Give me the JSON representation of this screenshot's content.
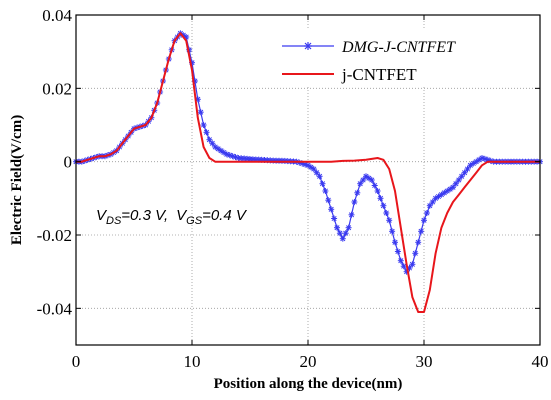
{
  "chart_data": {
    "type": "line",
    "xlabel": "Position along the device(nm)",
    "ylabel": "Electric Field(V/cm)",
    "xlim": [
      0,
      40
    ],
    "ylim": [
      -0.05,
      0.04
    ],
    "xticks": [
      0,
      10,
      20,
      30,
      40
    ],
    "yticks": [
      0.04,
      0.02,
      0,
      -0.02,
      -0.04
    ],
    "xtick_labels": [
      "0",
      "10",
      "20",
      "30",
      "40"
    ],
    "ytick_labels": [
      "0.04",
      "0.02",
      "0",
      "-0.02",
      "-0.04"
    ],
    "grid": true,
    "legend_position": "top-right",
    "annotation": {
      "v1": "V",
      "s1": "DS",
      "t1": "=0.3 V,",
      "v2": "V",
      "s2": "GS",
      "t2": "=0.4 V"
    },
    "series": [
      {
        "name": "DMG-J-CNTFET",
        "color": "#3a3af0",
        "marker": "asterisk",
        "x": [
          0,
          0.5,
          1,
          1.5,
          2,
          2.5,
          3,
          3.5,
          4,
          4.5,
          5,
          5.5,
          6,
          6.5,
          7,
          7.5,
          8,
          8.5,
          9,
          9.5,
          10,
          10.5,
          11,
          11.5,
          12,
          12.5,
          13,
          14,
          15,
          16,
          17,
          18,
          19,
          20,
          20.5,
          21,
          21.5,
          22,
          22.5,
          23,
          23.5,
          24,
          24.5,
          25,
          25.5,
          26,
          26.5,
          27,
          27.5,
          28,
          28.5,
          29,
          29.5,
          30,
          30.5,
          31,
          31.5,
          32,
          32.5,
          33,
          33.5,
          34,
          34.5,
          35,
          35.5,
          36,
          36.5,
          37,
          37.5,
          38,
          38.5,
          39,
          39.5,
          40
        ],
        "y": [
          0,
          0,
          0.0005,
          0.001,
          0.0015,
          0.0015,
          0.002,
          0.003,
          0.005,
          0.007,
          0.009,
          0.0095,
          0.01,
          0.012,
          0.016,
          0.022,
          0.028,
          0.033,
          0.035,
          0.034,
          0.027,
          0.017,
          0.01,
          0.006,
          0.004,
          0.003,
          0.002,
          0.001,
          0.0007,
          0.0005,
          0.0003,
          0.0002,
          0,
          -0.001,
          -0.002,
          -0.004,
          -0.008,
          -0.013,
          -0.018,
          -0.021,
          -0.018,
          -0.011,
          -0.006,
          -0.004,
          -0.005,
          -0.008,
          -0.012,
          -0.016,
          -0.022,
          -0.027,
          -0.03,
          -0.028,
          -0.022,
          -0.016,
          -0.012,
          -0.01,
          -0.009,
          -0.008,
          -0.007,
          -0.005,
          -0.003,
          -0.001,
          0,
          0.001,
          0.0005,
          0,
          0,
          0,
          0,
          0,
          0,
          0,
          0,
          0
        ]
      },
      {
        "name": "j-CNTFET",
        "color": "#e8161b",
        "marker": "none",
        "x": [
          0,
          0.5,
          1,
          1.5,
          2,
          2.5,
          3,
          3.5,
          4,
          4.5,
          5,
          5.5,
          6,
          6.5,
          7,
          7.5,
          8,
          8.5,
          9,
          9.5,
          10,
          10.5,
          11,
          11.5,
          12,
          12.5,
          13,
          14,
          15,
          16,
          17,
          18,
          19,
          20,
          21,
          22,
          23,
          24,
          25,
          26,
          26.5,
          27,
          27.5,
          28,
          28.5,
          29,
          29.5,
          30,
          30.5,
          31,
          31.5,
          32,
          32.5,
          33,
          33.5,
          34,
          34.5,
          35,
          35.5,
          36,
          36.5,
          37,
          37.5,
          38,
          38.5,
          39,
          39.5,
          40
        ],
        "y": [
          0,
          0,
          0.0005,
          0.001,
          0.0015,
          0.0015,
          0.002,
          0.003,
          0.005,
          0.007,
          0.009,
          0.0095,
          0.01,
          0.012,
          0.016,
          0.022,
          0.028,
          0.033,
          0.035,
          0.033,
          0.025,
          0.012,
          0.004,
          0.001,
          0,
          0,
          0,
          0,
          0,
          0,
          0,
          0,
          0,
          0,
          0,
          0,
          0.0002,
          0.0003,
          0.0005,
          0.001,
          0.0005,
          -0.002,
          -0.008,
          -0.018,
          -0.028,
          -0.037,
          -0.041,
          -0.041,
          -0.035,
          -0.025,
          -0.018,
          -0.014,
          -0.011,
          -0.009,
          -0.007,
          -0.005,
          -0.003,
          -0.001,
          0,
          0,
          0,
          0,
          0,
          0,
          0,
          0,
          0,
          0
        ]
      }
    ]
  }
}
